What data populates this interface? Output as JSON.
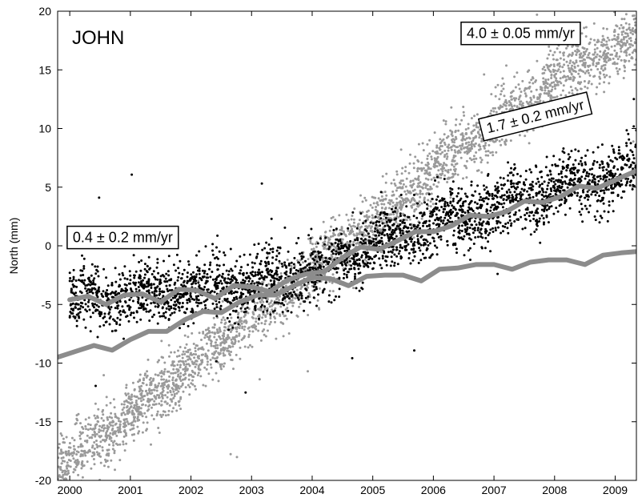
{
  "chart_data": {
    "type": "scatter",
    "station": "JOHN",
    "ylabel": "North (mm)",
    "xlabel": "",
    "xlim": [
      1999.8,
      2009.35
    ],
    "ylim": [
      -20,
      20
    ],
    "xticks": [
      "2000",
      "2001",
      "2002",
      "2003",
      "2004",
      "2005",
      "2006",
      "2007",
      "2008",
      "2009"
    ],
    "yticks": [
      "20",
      "15",
      "10",
      "5",
      "0",
      "-5",
      "-10",
      "-15",
      "-20"
    ],
    "grid": false,
    "colors": {
      "black_points": "#000000",
      "gray_points": "#9a9a9a",
      "model_curves": "#8c8c8c"
    },
    "annotations": [
      {
        "id": "rate-04",
        "text": "0.4 ± 0.2 mm/yr",
        "x": 2000.05,
        "y": 0.3,
        "rotation": 0
      },
      {
        "id": "rate-17",
        "text": "1.7 ± 0.2 mm/yr",
        "x": 2006.9,
        "y": 9.6,
        "rotation": -14
      },
      {
        "id": "rate-40",
        "text": "4.0 ± 0.05 mm/yr",
        "x": 2006.55,
        "y": 17.7,
        "rotation": 0
      }
    ],
    "series": [
      {
        "style": "points-black",
        "trend": [
          [
            2000.0,
            -4.5
          ],
          [
            2001.0,
            -4.3
          ],
          [
            2002.0,
            -3.8
          ],
          [
            2003.0,
            -3.3
          ],
          [
            2004.0,
            -2.3
          ],
          [
            2005.0,
            0.0
          ],
          [
            2006.0,
            1.8
          ],
          [
            2007.0,
            3.3
          ],
          [
            2008.0,
            4.8
          ],
          [
            2009.35,
            6.6
          ]
        ],
        "scatter_sd": 1.3
      },
      {
        "style": "points-gray",
        "trend": [
          [
            1999.8,
            -19.0
          ],
          [
            2001.0,
            -14.3
          ],
          [
            2002.0,
            -10.2
          ],
          [
            2003.0,
            -6.3
          ],
          [
            2004.0,
            -2.0
          ],
          [
            2005.0,
            2.0
          ],
          [
            2006.0,
            6.3
          ],
          [
            2007.0,
            10.3
          ],
          [
            2008.0,
            14.0
          ],
          [
            2009.35,
            18.0
          ]
        ],
        "scatter_sd": 1.3
      },
      {
        "style": "curve-black-model",
        "points": [
          [
            2000.0,
            -4.6
          ],
          [
            2000.3,
            -4.3
          ],
          [
            2000.6,
            -5.0
          ],
          [
            2000.9,
            -4.2
          ],
          [
            2001.2,
            -4.1
          ],
          [
            2001.5,
            -4.8
          ],
          [
            2001.8,
            -3.7
          ],
          [
            2002.1,
            -3.8
          ],
          [
            2002.4,
            -4.5
          ],
          [
            2002.7,
            -3.4
          ],
          [
            2003.0,
            -3.5
          ],
          [
            2003.3,
            -3.9
          ],
          [
            2003.6,
            -2.9
          ],
          [
            2003.9,
            -2.4
          ],
          [
            2004.2,
            -2.2
          ],
          [
            2004.5,
            -1.0
          ],
          [
            2004.8,
            -0.1
          ],
          [
            2005.1,
            -0.3
          ],
          [
            2005.4,
            0.4
          ],
          [
            2005.7,
            1.2
          ],
          [
            2006.0,
            1.2
          ],
          [
            2006.3,
            1.7
          ],
          [
            2006.6,
            2.6
          ],
          [
            2006.9,
            2.5
          ],
          [
            2007.2,
            2.9
          ],
          [
            2007.5,
            3.8
          ],
          [
            2007.8,
            3.7
          ],
          [
            2008.1,
            4.2
          ],
          [
            2008.4,
            5.1
          ],
          [
            2008.7,
            4.9
          ],
          [
            2009.0,
            5.6
          ],
          [
            2009.35,
            6.4
          ]
        ]
      },
      {
        "style": "curve-gray-model",
        "points": [
          [
            1999.8,
            -9.5
          ],
          [
            2000.1,
            -9.0
          ],
          [
            2000.4,
            -8.5
          ],
          [
            2000.7,
            -8.9
          ],
          [
            2001.0,
            -8.0
          ],
          [
            2001.3,
            -7.3
          ],
          [
            2001.6,
            -7.3
          ],
          [
            2001.9,
            -6.3
          ],
          [
            2002.2,
            -5.6
          ],
          [
            2002.5,
            -5.7
          ],
          [
            2002.8,
            -4.8
          ],
          [
            2003.1,
            -4.2
          ],
          [
            2003.4,
            -4.2
          ],
          [
            2003.7,
            -3.4
          ],
          [
            2004.0,
            -2.7
          ],
          [
            2004.3,
            -2.8
          ],
          [
            2004.6,
            -3.4
          ],
          [
            2004.9,
            -2.6
          ],
          [
            2005.2,
            -2.5
          ],
          [
            2005.5,
            -2.5
          ],
          [
            2005.8,
            -3.0
          ],
          [
            2006.1,
            -2.0
          ],
          [
            2006.4,
            -1.9
          ],
          [
            2006.7,
            -1.6
          ],
          [
            2007.0,
            -1.6
          ],
          [
            2007.3,
            -2.0
          ],
          [
            2007.6,
            -1.4
          ],
          [
            2007.9,
            -1.2
          ],
          [
            2008.2,
            -1.2
          ],
          [
            2008.5,
            -1.6
          ],
          [
            2008.8,
            -0.8
          ],
          [
            2009.1,
            -0.6
          ],
          [
            2009.35,
            -0.5
          ]
        ]
      }
    ]
  }
}
